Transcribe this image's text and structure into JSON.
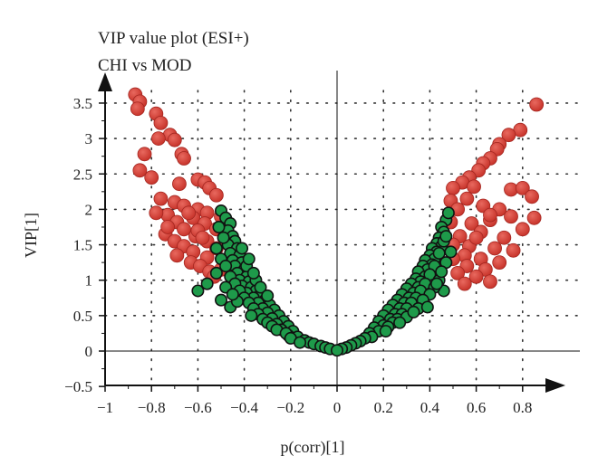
{
  "chart_data": {
    "type": "scatter",
    "title": "VIP value plot (ESI+)",
    "subtitle": "CHI vs MOD",
    "xlabel": "p(corr)[1]",
    "ylabel": "VIP[1]",
    "xlim": [
      -1,
      0.9
    ],
    "ylim": [
      -0.5,
      3.8
    ],
    "x_ticks": [
      "−1",
      "−0.8",
      "−0.6",
      "−0.4",
      "−0.2",
      "0",
      "0.2",
      "0.4",
      "0.6",
      "0.8"
    ],
    "y_ticks": [
      "−0.5",
      "0",
      "0.5",
      "1",
      "1.5",
      "2",
      "2.5",
      "3",
      "3.5"
    ],
    "grid": "dotted",
    "legend": "none",
    "colors": {
      "significant": "#c8342b",
      "nonsignificant": "#1e9a4a",
      "outline": "#111111"
    },
    "series": [
      {
        "color": "#c8342b",
        "points": [
          [
            -0.87,
            3.62
          ],
          [
            -0.85,
            3.52
          ],
          [
            -0.86,
            3.42
          ],
          [
            -0.78,
            3.35
          ],
          [
            -0.76,
            3.22
          ],
          [
            -0.72,
            3.05
          ],
          [
            -0.77,
            3.0
          ],
          [
            -0.7,
            2.98
          ],
          [
            -0.67,
            2.78
          ],
          [
            -0.66,
            2.72
          ],
          [
            -0.83,
            2.78
          ],
          [
            -0.85,
            2.55
          ],
          [
            -0.8,
            2.45
          ],
          [
            -0.6,
            2.42
          ],
          [
            -0.57,
            2.38
          ],
          [
            -0.68,
            2.36
          ],
          [
            -0.55,
            2.3
          ],
          [
            -0.52,
            2.2
          ],
          [
            -0.76,
            2.15
          ],
          [
            -0.7,
            2.1
          ],
          [
            -0.66,
            2.05
          ],
          [
            -0.6,
            2.0
          ],
          [
            -0.56,
            1.95
          ],
          [
            -0.73,
            1.92
          ],
          [
            -0.78,
            1.95
          ],
          [
            -0.62,
            1.88
          ],
          [
            -0.5,
            1.9
          ],
          [
            -0.69,
            1.82
          ],
          [
            -0.57,
            1.8
          ],
          [
            -0.66,
            1.72
          ],
          [
            -0.52,
            1.72
          ],
          [
            -0.74,
            1.65
          ],
          [
            -0.61,
            1.62
          ],
          [
            -0.7,
            1.55
          ],
          [
            -0.56,
            1.55
          ],
          [
            -0.66,
            1.48
          ],
          [
            -0.52,
            1.45
          ],
          [
            -0.62,
            1.4
          ],
          [
            -0.69,
            1.35
          ],
          [
            -0.56,
            1.32
          ],
          [
            -0.63,
            1.25
          ],
          [
            -0.59,
            1.2
          ],
          [
            -0.55,
            1.12
          ],
          [
            -0.5,
            1.15
          ],
          [
            -0.53,
            1.05
          ],
          [
            -0.73,
            1.75
          ],
          [
            -0.64,
            1.95
          ],
          [
            -0.6,
            1.7
          ],
          [
            -0.48,
            1.55
          ],
          [
            -0.58,
            1.6
          ],
          [
            0.86,
            3.48
          ],
          [
            0.79,
            3.12
          ],
          [
            0.74,
            3.05
          ],
          [
            0.7,
            2.92
          ],
          [
            0.69,
            2.85
          ],
          [
            0.66,
            2.72
          ],
          [
            0.63,
            2.65
          ],
          [
            0.61,
            2.55
          ],
          [
            0.57,
            2.45
          ],
          [
            0.54,
            2.38
          ],
          [
            0.59,
            2.32
          ],
          [
            0.5,
            2.3
          ],
          [
            0.75,
            2.28
          ],
          [
            0.8,
            2.3
          ],
          [
            0.84,
            2.18
          ],
          [
            0.49,
            2.12
          ],
          [
            0.56,
            2.15
          ],
          [
            0.63,
            2.05
          ],
          [
            0.7,
            2.0
          ],
          [
            0.52,
            2.0
          ],
          [
            0.85,
            1.88
          ],
          [
            0.75,
            1.9
          ],
          [
            0.66,
            1.85
          ],
          [
            0.58,
            1.8
          ],
          [
            0.49,
            1.82
          ],
          [
            0.8,
            1.72
          ],
          [
            0.62,
            1.68
          ],
          [
            0.53,
            1.62
          ],
          [
            0.72,
            1.6
          ],
          [
            0.5,
            1.5
          ],
          [
            0.57,
            1.48
          ],
          [
            0.68,
            1.45
          ],
          [
            0.76,
            1.42
          ],
          [
            0.55,
            1.35
          ],
          [
            0.62,
            1.3
          ],
          [
            0.5,
            1.3
          ],
          [
            0.7,
            1.25
          ],
          [
            0.56,
            1.2
          ],
          [
            0.64,
            1.15
          ],
          [
            0.52,
            1.1
          ],
          [
            0.6,
            1.05
          ],
          [
            0.66,
            0.98
          ],
          [
            0.55,
            0.95
          ],
          [
            0.6,
            1.6
          ],
          [
            0.66,
            1.92
          ]
        ]
      },
      {
        "color": "#1e9a4a",
        "points": [
          [
            -0.5,
            1.98
          ],
          [
            -0.48,
            1.88
          ],
          [
            -0.46,
            1.8
          ],
          [
            -0.47,
            1.7
          ],
          [
            -0.45,
            1.62
          ],
          [
            -0.44,
            1.55
          ],
          [
            -0.47,
            1.5
          ],
          [
            -0.43,
            1.45
          ],
          [
            -0.46,
            1.38
          ],
          [
            -0.42,
            1.35
          ],
          [
            -0.45,
            1.28
          ],
          [
            -0.41,
            1.25
          ],
          [
            -0.44,
            1.2
          ],
          [
            -0.4,
            1.15
          ],
          [
            -0.43,
            1.1
          ],
          [
            -0.39,
            1.05
          ],
          [
            -0.42,
            1.0
          ],
          [
            -0.38,
            0.98
          ],
          [
            -0.41,
            0.92
          ],
          [
            -0.37,
            0.9
          ],
          [
            -0.35,
            0.85
          ],
          [
            -0.39,
            0.82
          ],
          [
            -0.33,
            0.8
          ],
          [
            -0.36,
            0.75
          ],
          [
            -0.31,
            0.72
          ],
          [
            -0.34,
            0.68
          ],
          [
            -0.29,
            0.65
          ],
          [
            -0.32,
            0.6
          ],
          [
            -0.27,
            0.58
          ],
          [
            -0.3,
            0.54
          ],
          [
            -0.25,
            0.5
          ],
          [
            -0.28,
            0.46
          ],
          [
            -0.23,
            0.42
          ],
          [
            -0.26,
            0.38
          ],
          [
            -0.21,
            0.35
          ],
          [
            -0.24,
            0.3
          ],
          [
            -0.19,
            0.28
          ],
          [
            -0.21,
            0.22
          ],
          [
            -0.17,
            0.2
          ],
          [
            -0.14,
            0.15
          ],
          [
            -0.12,
            0.12
          ],
          [
            -0.1,
            0.1
          ],
          [
            -0.07,
            0.07
          ],
          [
            -0.05,
            0.05
          ],
          [
            -0.03,
            0.03
          ],
          [
            -0.52,
            1.45
          ],
          [
            -0.5,
            1.3
          ],
          [
            -0.48,
            1.2
          ],
          [
            -0.46,
            1.05
          ],
          [
            -0.44,
            0.95
          ],
          [
            -0.42,
            0.85
          ],
          [
            -0.4,
            0.75
          ],
          [
            -0.38,
            0.68
          ],
          [
            -0.36,
            0.6
          ],
          [
            -0.34,
            0.52
          ],
          [
            -0.32,
            0.45
          ],
          [
            -0.3,
            0.4
          ],
          [
            -0.28,
            0.35
          ],
          [
            -0.26,
            0.3
          ],
          [
            -0.22,
            0.25
          ],
          [
            -0.2,
            0.18
          ],
          [
            -0.16,
            0.12
          ],
          [
            -0.56,
            0.95
          ],
          [
            -0.6,
            0.85
          ],
          [
            -0.5,
            0.72
          ],
          [
            -0.48,
            0.9
          ],
          [
            -0.46,
            0.62
          ],
          [
            -0.43,
            0.7
          ],
          [
            -0.45,
            0.8
          ],
          [
            -0.37,
            0.5
          ],
          [
            -0.52,
            1.1
          ],
          [
            -0.39,
            1.2
          ],
          [
            -0.35,
            1.0
          ],
          [
            -0.33,
            0.9
          ],
          [
            -0.49,
            1.6
          ],
          [
            -0.51,
            1.75
          ],
          [
            -0.41,
            1.45
          ],
          [
            -0.38,
            1.3
          ],
          [
            -0.36,
            1.1
          ],
          [
            -0.3,
            0.78
          ],
          [
            0.47,
            1.85
          ],
          [
            0.45,
            1.75
          ],
          [
            0.46,
            1.68
          ],
          [
            0.44,
            1.6
          ],
          [
            0.43,
            1.52
          ],
          [
            0.45,
            1.48
          ],
          [
            0.41,
            1.45
          ],
          [
            0.43,
            1.4
          ],
          [
            0.4,
            1.35
          ],
          [
            0.42,
            1.3
          ],
          [
            0.38,
            1.28
          ],
          [
            0.41,
            1.22
          ],
          [
            0.37,
            1.2
          ],
          [
            0.39,
            1.15
          ],
          [
            0.35,
            1.12
          ],
          [
            0.38,
            1.05
          ],
          [
            0.34,
            1.02
          ],
          [
            0.36,
            0.98
          ],
          [
            0.32,
            0.95
          ],
          [
            0.35,
            0.9
          ],
          [
            0.3,
            0.88
          ],
          [
            0.33,
            0.82
          ],
          [
            0.28,
            0.8
          ],
          [
            0.31,
            0.75
          ],
          [
            0.26,
            0.72
          ],
          [
            0.29,
            0.68
          ],
          [
            0.24,
            0.65
          ],
          [
            0.27,
            0.6
          ],
          [
            0.22,
            0.58
          ],
          [
            0.25,
            0.52
          ],
          [
            0.2,
            0.5
          ],
          [
            0.23,
            0.45
          ],
          [
            0.18,
            0.42
          ],
          [
            0.2,
            0.36
          ],
          [
            0.16,
            0.33
          ],
          [
            0.18,
            0.28
          ],
          [
            0.14,
            0.25
          ],
          [
            0.15,
            0.2
          ],
          [
            0.12,
            0.18
          ],
          [
            0.1,
            0.14
          ],
          [
            0.08,
            0.11
          ],
          [
            0.06,
            0.08
          ],
          [
            0.04,
            0.05
          ],
          [
            0.02,
            0.03
          ],
          [
            0.0,
            0.01
          ],
          [
            0.48,
            1.95
          ],
          [
            0.46,
            1.55
          ],
          [
            0.44,
            1.38
          ],
          [
            0.42,
            1.2
          ],
          [
            0.4,
            1.08
          ],
          [
            0.38,
            0.95
          ],
          [
            0.36,
            0.85
          ],
          [
            0.34,
            0.75
          ],
          [
            0.32,
            0.68
          ],
          [
            0.3,
            0.6
          ],
          [
            0.28,
            0.52
          ],
          [
            0.26,
            0.45
          ],
          [
            0.24,
            0.4
          ],
          [
            0.22,
            0.34
          ],
          [
            0.46,
            0.85
          ],
          [
            0.42,
            0.9
          ],
          [
            0.4,
            0.8
          ],
          [
            0.44,
            1.0
          ],
          [
            0.37,
            0.72
          ],
          [
            0.35,
            0.6
          ],
          [
            0.49,
            1.4
          ],
          [
            0.47,
            1.25
          ],
          [
            0.45,
            1.12
          ],
          [
            0.43,
            0.95
          ],
          [
            0.47,
            1.62
          ],
          [
            0.3,
            0.48
          ],
          [
            0.33,
            0.55
          ],
          [
            0.39,
            0.62
          ],
          [
            0.27,
            0.4
          ],
          [
            0.21,
            0.28
          ]
        ]
      }
    ]
  }
}
